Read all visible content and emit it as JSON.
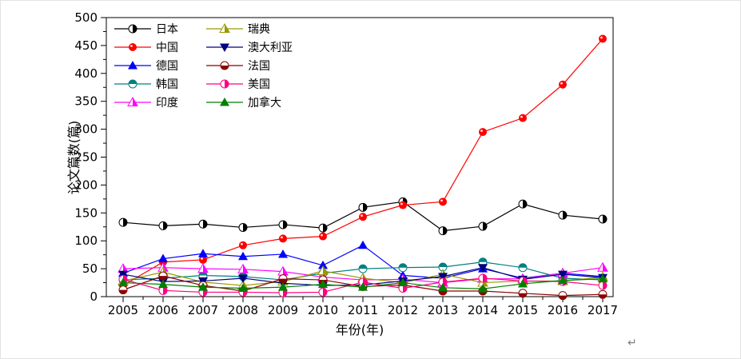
{
  "chart_data": {
    "type": "line",
    "title": "",
    "xlabel": "年份(年)",
    "ylabel": "论文篇数(篇)",
    "x": [
      2005,
      2006,
      2007,
      2008,
      2009,
      2010,
      2011,
      2012,
      2013,
      2014,
      2015,
      2016,
      2017
    ],
    "ylim": [
      0,
      500
    ],
    "yticks": [
      0,
      50,
      100,
      150,
      200,
      250,
      300,
      350,
      400,
      450,
      500
    ],
    "y_minor_step": 25,
    "grid": false,
    "legend": {
      "position": "top-left-inside",
      "columns": 2,
      "border": false
    },
    "series": [
      {
        "id": "japan",
        "name": "日本",
        "color": "#000000",
        "marker": "half-circle-right",
        "values": [
          133,
          127,
          130,
          124,
          129,
          123,
          160,
          170,
          118,
          126,
          166,
          146,
          139
        ]
      },
      {
        "id": "china",
        "name": "中国",
        "color": "#FF0000",
        "marker": "ball",
        "values": [
          20,
          62,
          66,
          92,
          104,
          108,
          143,
          164,
          170,
          295,
          320,
          380,
          462
        ]
      },
      {
        "id": "germany",
        "name": "德国",
        "color": "#0000FF",
        "marker": "triangle-up",
        "values": [
          42,
          68,
          77,
          72,
          76,
          56,
          92,
          38,
          33,
          50,
          33,
          42,
          36
        ]
      },
      {
        "id": "korea",
        "name": "韩国",
        "color": "#008080",
        "marker": "half-circle-top",
        "values": [
          30,
          33,
          38,
          36,
          30,
          42,
          50,
          52,
          53,
          62,
          52,
          33,
          30
        ]
      },
      {
        "id": "india",
        "name": "印度",
        "color": "#FF00FF",
        "marker": "triangle-up-half",
        "values": [
          50,
          52,
          50,
          49,
          45,
          35,
          30,
          31,
          25,
          32,
          32,
          42,
          52
        ]
      },
      {
        "id": "sweden",
        "name": "瑞典",
        "color": "#999900",
        "marker": "triangle-up-half",
        "values": [
          28,
          44,
          26,
          20,
          27,
          46,
          33,
          25,
          40,
          25,
          28,
          28,
          35
        ]
      },
      {
        "id": "australia",
        "name": "澳大利亚",
        "color": "#000080",
        "marker": "triangle-down",
        "values": [
          40,
          27,
          28,
          33,
          24,
          20,
          21,
          28,
          36,
          52,
          31,
          40,
          34
        ]
      },
      {
        "id": "france",
        "name": "法国",
        "color": "#8B0000",
        "marker": "half-circle-bottom",
        "values": [
          12,
          37,
          20,
          10,
          32,
          30,
          18,
          21,
          10,
          10,
          6,
          2,
          4
        ]
      },
      {
        "id": "usa",
        "name": "美国",
        "color": "#FF0080",
        "marker": "half-circle-right",
        "values": [
          31,
          11,
          8,
          8,
          7,
          8,
          26,
          15,
          26,
          33,
          28,
          27,
          20
        ]
      },
      {
        "id": "canada",
        "name": "加拿大",
        "color": "#008000",
        "marker": "triangle-up",
        "values": [
          25,
          22,
          17,
          15,
          17,
          22,
          17,
          25,
          16,
          14,
          23,
          29,
          32
        ]
      }
    ]
  },
  "page": {
    "return_mark": "↵"
  }
}
